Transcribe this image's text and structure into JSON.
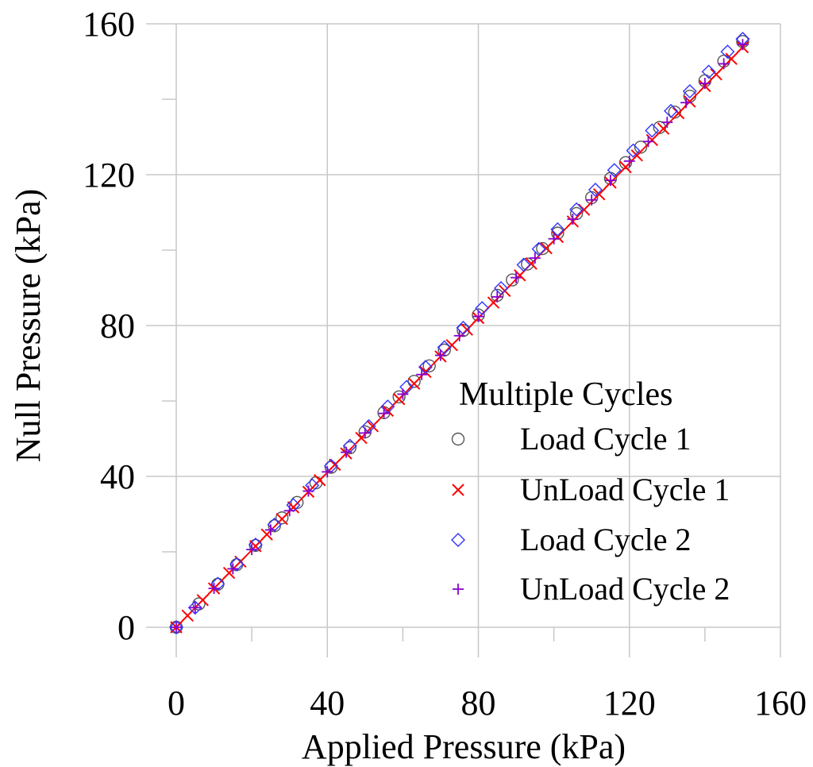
{
  "chart_data": {
    "type": "scatter",
    "title": "",
    "xlabel": "Applied Pressure (kPa)",
    "ylabel": "Null Pressure (kPa)",
    "xlim": [
      0,
      160
    ],
    "ylim": [
      0,
      160
    ],
    "xticks": [
      "0",
      "40",
      "80",
      "120",
      "160"
    ],
    "yticks": [
      "0",
      "40",
      "80",
      "120",
      "160"
    ],
    "grid": true,
    "legend": {
      "title": "Multiple Cycles",
      "placement": "bottom-right"
    },
    "series": [
      {
        "name": "Load Cycle 1",
        "marker": "circle",
        "color": "#555555",
        "x": [
          0,
          6,
          11,
          16,
          21,
          26,
          28,
          32,
          37,
          41,
          46,
          50,
          55,
          59,
          63,
          67,
          71,
          76,
          80,
          85,
          89,
          93,
          97,
          101,
          106,
          110,
          115,
          119,
          123,
          128,
          132,
          136,
          140,
          145,
          150
        ],
        "y": [
          0,
          6.2,
          11.4,
          16.6,
          21.7,
          26.9,
          29.0,
          33.1,
          38.3,
          42.4,
          47.6,
          51.8,
          56.9,
          61.1,
          65.2,
          69.3,
          73.5,
          78.7,
          82.8,
          88.0,
          92.1,
          96.3,
          100.4,
          104.5,
          109.7,
          113.9,
          119.0,
          123.2,
          127.3,
          132.5,
          136.6,
          140.8,
          144.9,
          150.1,
          155.3
        ]
      },
      {
        "name": "UnLoad Cycle 1",
        "marker": "x",
        "color": "#ff0000",
        "line": true,
        "x": [
          150,
          147,
          143,
          140,
          136,
          133,
          129,
          126,
          122,
          119,
          115,
          112,
          108,
          105,
          101,
          98,
          94,
          91,
          87,
          84,
          80,
          77,
          73,
          70,
          66,
          63,
          59,
          56,
          52,
          49,
          45,
          42,
          38,
          35,
          31,
          28,
          24,
          21,
          17,
          14,
          10,
          7,
          3,
          0
        ],
        "y": [
          153.8,
          150.7,
          146.6,
          143.5,
          139.4,
          136.3,
          132.2,
          129.2,
          125.1,
          122.0,
          117.9,
          114.8,
          110.7,
          107.6,
          103.5,
          100.5,
          96.4,
          93.3,
          89.2,
          86.1,
          82.0,
          78.9,
          74.8,
          71.8,
          67.7,
          64.6,
          60.5,
          57.4,
          53.3,
          50.2,
          46.1,
          43.1,
          39.0,
          35.9,
          31.8,
          28.7,
          24.6,
          21.5,
          17.4,
          14.4,
          10.3,
          7.2,
          3.1,
          0
        ]
      },
      {
        "name": "Load Cycle 2",
        "marker": "diamond",
        "color": "#3333ff",
        "x": [
          0,
          5,
          11,
          16,
          21,
          26,
          31,
          36,
          41,
          46,
          51,
          56,
          61,
          66,
          71,
          76,
          81,
          86,
          92,
          96,
          101,
          106,
          111,
          116,
          121,
          126,
          131,
          136,
          141,
          146,
          150
        ],
        "y": [
          0,
          5.2,
          11.5,
          16.7,
          21.9,
          27.2,
          32.4,
          37.6,
          42.8,
          48.1,
          53.3,
          58.5,
          63.7,
          69.0,
          74.2,
          79.4,
          84.6,
          89.9,
          96.1,
          100.3,
          105.5,
          110.8,
          116.0,
          121.2,
          126.4,
          131.7,
          136.9,
          142.1,
          147.3,
          152.6,
          156.0
        ]
      },
      {
        "name": "UnLoad Cycle 2",
        "marker": "plus",
        "color": "#8800cc",
        "x": [
          150,
          145,
          140,
          135,
          130,
          125,
          120,
          115,
          110,
          105,
          100,
          95,
          90,
          85,
          80,
          75,
          70,
          65,
          60,
          55,
          50,
          45,
          40,
          35,
          30,
          25,
          20,
          15,
          10,
          5,
          0
        ],
        "y": [
          154.5,
          149.4,
          144.2,
          139.1,
          133.9,
          128.8,
          123.6,
          118.5,
          113.3,
          108.2,
          103.0,
          97.9,
          92.7,
          87.6,
          82.4,
          77.3,
          72.1,
          67.0,
          61.8,
          56.7,
          51.5,
          46.4,
          41.2,
          36.1,
          30.9,
          25.8,
          20.6,
          15.5,
          10.3,
          5.2,
          0
        ]
      }
    ]
  }
}
